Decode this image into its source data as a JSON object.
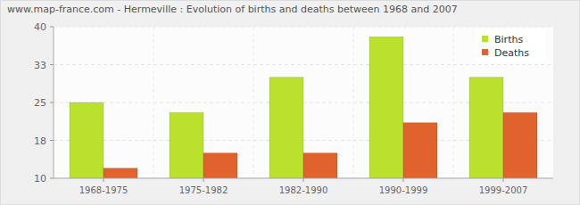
{
  "chart_data": {
    "type": "bar",
    "title": "www.map-france.com - Hermeville : Evolution of births and deaths between 1968 and 2007",
    "categories": [
      "1968-1975",
      "1975-1982",
      "1982-1990",
      "1990-1999",
      "1999-2007"
    ],
    "series": [
      {
        "name": "Births",
        "color": "#bbe12f",
        "values": [
          25,
          23,
          30,
          38,
          30
        ]
      },
      {
        "name": "Deaths",
        "color": "#e0622c",
        "values": [
          12,
          15,
          15,
          21,
          23
        ]
      }
    ],
    "ylim": [
      10,
      40
    ],
    "yticks": [
      10,
      {
        "value": 17.5,
        "label": "18"
      },
      25,
      {
        "value": 32.5,
        "label": "33"
      },
      40
    ],
    "grid": true,
    "legend": "top-right"
  }
}
